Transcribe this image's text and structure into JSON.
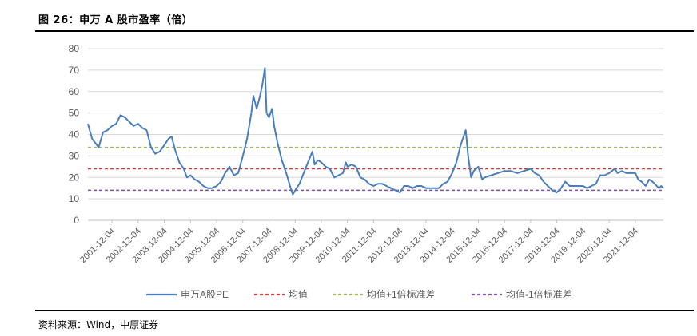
{
  "figure": {
    "title": "图 26：申万 A 股市盈率（倍）",
    "source": "资料来源：Wind，中原证券"
  },
  "colors": {
    "pe": "#4a7ebb",
    "mean": "#d03a3a",
    "plus1sd": "#9bbb59",
    "minus1sd": "#7b52a6",
    "grid": "#d9d9d9",
    "axis": "#bfbfbf",
    "text": "#595959"
  },
  "chart_data": {
    "type": "line",
    "xlabel": "",
    "ylabel": "",
    "ylim": [
      0,
      80
    ],
    "yticks": [
      0,
      10,
      20,
      30,
      40,
      50,
      60,
      70,
      80
    ],
    "grid": "horizontal",
    "legend_position": "bottom",
    "x_tick_labels": [
      "2001-12-04",
      "2002-12-04",
      "2003-12-04",
      "2004-12-04",
      "2005-12-04",
      "2006-12-04",
      "2007-12-04",
      "2008-12-04",
      "2009-12-04",
      "2010-12-04",
      "2011-12-04",
      "2012-12-04",
      "2013-12-04",
      "2014-12-04",
      "2015-12-04",
      "2016-12-04",
      "2017-12-04",
      "2018-12-04",
      "2019-12-04",
      "2020-12-04",
      "2021-12-04"
    ],
    "series": [
      {
        "name": "申万A股PE",
        "style": "solid",
        "points": [
          [
            "2001-01-02",
            45
          ],
          [
            "2001-03-01",
            38
          ],
          [
            "2001-06-01",
            34
          ],
          [
            "2001-08-01",
            41
          ],
          [
            "2001-10-01",
            42
          ],
          [
            "2001-12-04",
            44
          ],
          [
            "2002-02-01",
            45
          ],
          [
            "2002-04-01",
            49
          ],
          [
            "2002-06-01",
            48
          ],
          [
            "2002-08-01",
            46
          ],
          [
            "2002-10-01",
            44
          ],
          [
            "2002-12-04",
            45
          ],
          [
            "2003-02-01",
            43
          ],
          [
            "2003-04-01",
            42
          ],
          [
            "2003-06-01",
            34
          ],
          [
            "2003-08-01",
            31
          ],
          [
            "2003-10-01",
            32
          ],
          [
            "2003-12-04",
            35
          ],
          [
            "2004-02-01",
            38
          ],
          [
            "2004-03-15",
            39
          ],
          [
            "2004-05-01",
            33
          ],
          [
            "2004-07-01",
            27
          ],
          [
            "2004-09-01",
            24
          ],
          [
            "2004-10-15",
            20
          ],
          [
            "2004-12-04",
            21
          ],
          [
            "2005-02-01",
            19
          ],
          [
            "2005-04-01",
            18
          ],
          [
            "2005-06-01",
            16
          ],
          [
            "2005-08-01",
            15
          ],
          [
            "2005-10-01",
            15
          ],
          [
            "2005-12-04",
            16
          ],
          [
            "2006-02-01",
            18
          ],
          [
            "2006-04-01",
            22
          ],
          [
            "2006-06-01",
            25
          ],
          [
            "2006-08-01",
            21
          ],
          [
            "2006-10-01",
            22
          ],
          [
            "2006-12-04",
            30
          ],
          [
            "2007-02-01",
            38
          ],
          [
            "2007-04-01",
            50
          ],
          [
            "2007-05-01",
            58
          ],
          [
            "2007-06-15",
            52
          ],
          [
            "2007-08-01",
            58
          ],
          [
            "2007-09-01",
            63
          ],
          [
            "2007-10-08",
            71
          ],
          [
            "2007-11-01",
            50
          ],
          [
            "2007-12-04",
            48
          ],
          [
            "2008-01-15",
            52
          ],
          [
            "2008-02-15",
            44
          ],
          [
            "2008-04-01",
            36
          ],
          [
            "2008-06-01",
            28
          ],
          [
            "2008-08-01",
            22
          ],
          [
            "2008-10-01",
            15
          ],
          [
            "2008-11-01",
            12
          ],
          [
            "2008-12-04",
            14
          ],
          [
            "2009-02-01",
            17
          ],
          [
            "2009-04-01",
            22
          ],
          [
            "2009-06-01",
            27
          ],
          [
            "2009-08-01",
            32
          ],
          [
            "2009-09-01",
            26
          ],
          [
            "2009-10-15",
            28
          ],
          [
            "2009-12-04",
            27
          ],
          [
            "2010-02-01",
            25
          ],
          [
            "2010-04-01",
            24
          ],
          [
            "2010-06-01",
            20
          ],
          [
            "2010-08-01",
            21
          ],
          [
            "2010-10-01",
            22
          ],
          [
            "2010-11-10",
            27
          ],
          [
            "2010-12-04",
            25
          ],
          [
            "2011-02-01",
            26
          ],
          [
            "2011-04-01",
            25
          ],
          [
            "2011-06-01",
            20
          ],
          [
            "2011-08-01",
            19
          ],
          [
            "2011-10-01",
            17
          ],
          [
            "2011-12-04",
            16
          ],
          [
            "2012-02-01",
            17
          ],
          [
            "2012-04-01",
            17
          ],
          [
            "2012-06-01",
            16
          ],
          [
            "2012-08-01",
            15
          ],
          [
            "2012-10-01",
            14
          ],
          [
            "2012-12-04",
            13
          ],
          [
            "2013-02-01",
            16
          ],
          [
            "2013-04-01",
            16
          ],
          [
            "2013-06-01",
            15
          ],
          [
            "2013-08-01",
            16
          ],
          [
            "2013-10-01",
            16
          ],
          [
            "2013-12-04",
            15
          ],
          [
            "2014-02-01",
            15
          ],
          [
            "2014-04-01",
            15
          ],
          [
            "2014-06-01",
            15
          ],
          [
            "2014-08-01",
            17
          ],
          [
            "2014-10-01",
            18
          ],
          [
            "2014-12-04",
            22
          ],
          [
            "2015-02-01",
            27
          ],
          [
            "2015-04-01",
            35
          ],
          [
            "2015-06-12",
            42
          ],
          [
            "2015-07-15",
            30
          ],
          [
            "2015-08-26",
            20
          ],
          [
            "2015-10-01",
            23
          ],
          [
            "2015-12-04",
            25
          ],
          [
            "2016-01-28",
            19
          ],
          [
            "2016-03-01",
            20
          ],
          [
            "2016-06-01",
            21
          ],
          [
            "2016-09-01",
            22
          ],
          [
            "2016-12-04",
            23
          ],
          [
            "2017-03-01",
            23
          ],
          [
            "2017-06-01",
            22
          ],
          [
            "2017-09-01",
            23
          ],
          [
            "2017-12-04",
            24
          ],
          [
            "2018-02-01",
            22
          ],
          [
            "2018-04-01",
            21
          ],
          [
            "2018-06-01",
            18
          ],
          [
            "2018-08-01",
            16
          ],
          [
            "2018-10-01",
            14
          ],
          [
            "2018-12-04",
            13
          ],
          [
            "2019-02-01",
            15
          ],
          [
            "2019-04-01",
            18
          ],
          [
            "2019-06-01",
            16
          ],
          [
            "2019-08-01",
            16
          ],
          [
            "2019-10-01",
            16
          ],
          [
            "2019-12-04",
            16
          ],
          [
            "2020-02-01",
            15
          ],
          [
            "2020-04-01",
            16
          ],
          [
            "2020-06-01",
            17
          ],
          [
            "2020-08-01",
            21
          ],
          [
            "2020-10-01",
            21
          ],
          [
            "2020-12-04",
            22
          ],
          [
            "2021-02-18",
            24
          ],
          [
            "2021-04-01",
            22
          ],
          [
            "2021-06-01",
            23
          ],
          [
            "2021-08-01",
            22
          ],
          [
            "2021-10-01",
            22
          ],
          [
            "2021-12-04",
            22
          ],
          [
            "2022-01-15",
            19
          ],
          [
            "2022-03-01",
            18
          ],
          [
            "2022-04-27",
            16
          ],
          [
            "2022-06-15",
            19
          ],
          [
            "2022-08-01",
            18
          ],
          [
            "2022-10-31",
            15
          ],
          [
            "2022-12-01",
            16
          ],
          [
            "2022-12-31",
            15
          ]
        ]
      },
      {
        "name": "均值",
        "style": "dashed",
        "value": 24
      },
      {
        "name": "均值+1倍标准差",
        "style": "dashed",
        "value": 34
      },
      {
        "name": "均值-1倍标准差",
        "style": "dashed",
        "value": 14
      }
    ]
  }
}
